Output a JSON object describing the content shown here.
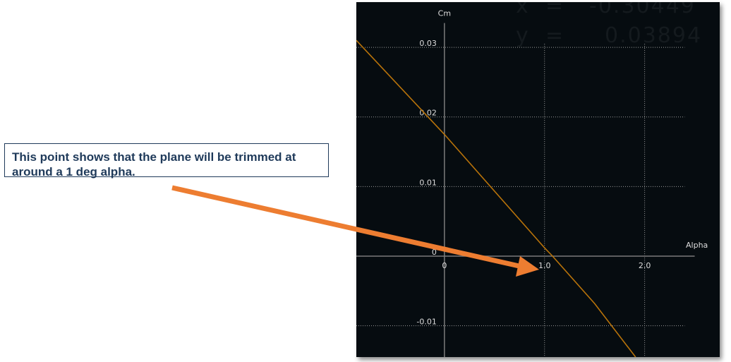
{
  "readout": {
    "x_label": "x",
    "x_eq": "=",
    "x_value": "-0.30449",
    "y_label": "y",
    "y_eq": "=",
    "y_value": "0.03894"
  },
  "callout": {
    "text": "This point shows that the plane will be trimmed at around a 1 deg alpha."
  },
  "chart_data": {
    "type": "line",
    "xlabel": "Alpha",
    "ylabel": "Cm",
    "xlim": [
      -0.88,
      2.75
    ],
    "ylim": [
      -0.0145,
      0.0365
    ],
    "x_ticks": [
      0,
      1.0,
      2.0
    ],
    "x_tick_labels": [
      "0",
      "1.0",
      "2.0"
    ],
    "y_ticks": [
      -0.01,
      0,
      0.01,
      0.02,
      0.03
    ],
    "y_tick_labels": [
      "-0.01",
      "0",
      "0.01",
      "0.02",
      "0.03"
    ],
    "grid": true,
    "series": [
      {
        "x": [
          -0.88,
          0,
          1.0,
          1.08,
          1.5,
          1.91
        ],
        "y": [
          0.031,
          0.0175,
          0.0012,
          0.0,
          -0.0068,
          -0.0145
        ]
      }
    ],
    "colors": {
      "series": "#b8730a",
      "axis": "#7a7a7a",
      "grid": "#9a9a9a",
      "text": "#dddddd",
      "arrow": "#ed7d31"
    }
  }
}
